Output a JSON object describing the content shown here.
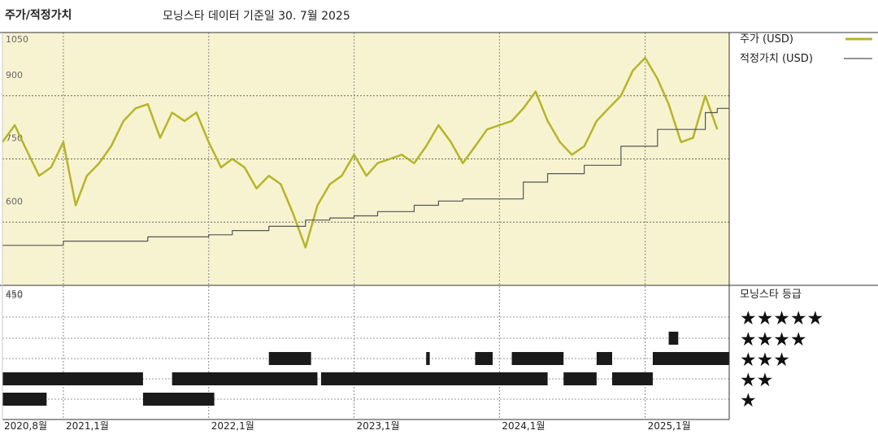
{
  "chart_data": {
    "type": "line",
    "title": "주가/적정가치",
    "subtitle": "모닝스타 데이터 기준일 30. 7월 2025",
    "x_labels": [
      "2020,8월",
      "2021,1월",
      "2022,1월",
      "2023,1월",
      "2024,1월",
      "2025,1월"
    ],
    "y_ticks": [
      1050,
      900,
      750,
      600,
      450
    ],
    "ylim": [
      450,
      1050
    ],
    "legend": [
      {
        "label": "주가 (USD)",
        "color": "#b5b52a"
      },
      {
        "label": "적정가치 (USD)",
        "color": "#555555"
      }
    ],
    "series": [
      {
        "name": "주가 (USD)",
        "color": "#b5b52a",
        "x": [
          "2020-08-01",
          "2020-09-01",
          "2020-10-01",
          "2020-11-01",
          "2020-12-01",
          "2021-01-01",
          "2021-02-01",
          "2021-03-01",
          "2021-04-01",
          "2021-05-01",
          "2021-06-01",
          "2021-07-01",
          "2021-08-01",
          "2021-09-01",
          "2021-10-01",
          "2021-11-01",
          "2021-12-01",
          "2022-01-01",
          "2022-02-01",
          "2022-03-01",
          "2022-04-01",
          "2022-05-01",
          "2022-06-01",
          "2022-07-01",
          "2022-08-01",
          "2022-09-01",
          "2022-10-01",
          "2022-11-01",
          "2022-12-01",
          "2023-01-01",
          "2023-02-01",
          "2023-03-01",
          "2023-04-01",
          "2023-05-01",
          "2023-06-01",
          "2023-07-01",
          "2023-08-01",
          "2023-09-01",
          "2023-10-01",
          "2023-11-01",
          "2023-12-01",
          "2024-01-01",
          "2024-02-01",
          "2024-03-01",
          "2024-04-01",
          "2024-05-01",
          "2024-06-01",
          "2024-07-01",
          "2024-08-01",
          "2024-09-01",
          "2024-10-01",
          "2024-11-01",
          "2024-12-01",
          "2025-01-01",
          "2025-02-01",
          "2025-03-01",
          "2025-04-01",
          "2025-05-01",
          "2025-06-01",
          "2025-07-01"
        ],
        "y": [
          790,
          830,
          770,
          710,
          730,
          790,
          640,
          710,
          740,
          780,
          840,
          870,
          880,
          800,
          860,
          840,
          860,
          790,
          730,
          750,
          730,
          680,
          710,
          690,
          620,
          540,
          640,
          690,
          710,
          760,
          710,
          740,
          750,
          760,
          740,
          780,
          830,
          790,
          740,
          780,
          820,
          830,
          840,
          870,
          910,
          840,
          790,
          760,
          780,
          840,
          870,
          900,
          960,
          990,
          940,
          880,
          790,
          800,
          900,
          820
        ]
      },
      {
        "name": "적정가치 (USD)",
        "color": "#555555",
        "x": [
          "2020-08-01",
          "2020-11-01",
          "2021-01-01",
          "2021-08-01",
          "2022-01-01",
          "2022-03-01",
          "2022-06-01",
          "2022-09-01",
          "2022-11-01",
          "2023-01-01",
          "2023-03-01",
          "2023-06-01",
          "2023-08-01",
          "2023-10-01",
          "2024-01-01",
          "2024-03-01",
          "2024-05-01",
          "2024-08-01",
          "2024-11-01",
          "2025-02-01",
          "2025-06-01",
          "2025-07-01"
        ],
        "y": [
          545,
          545,
          555,
          565,
          570,
          580,
          590,
          605,
          610,
          615,
          625,
          640,
          650,
          655,
          655,
          695,
          715,
          735,
          780,
          820,
          860,
          870
        ]
      }
    ],
    "rating_section": {
      "title": "모닝스타 등급",
      "rows": [
        {
          "label": "★★★★★",
          "stars": 5
        },
        {
          "label": "★★★★",
          "stars": 4
        },
        {
          "label": "★★★",
          "stars": 3
        },
        {
          "label": "★★",
          "stars": 2
        },
        {
          "label": "★",
          "stars": 1
        }
      ],
      "segments": [
        {
          "stars": 2,
          "start": "2020-08-01",
          "end": "2021-07-20"
        },
        {
          "stars": 1,
          "start": "2020-08-01",
          "end": "2020-11-20"
        },
        {
          "stars": 1,
          "start": "2021-07-20",
          "end": "2022-01-15"
        },
        {
          "stars": 2,
          "start": "2021-10-01",
          "end": "2022-10-01"
        },
        {
          "stars": 3,
          "start": "2022-06-01",
          "end": "2022-09-15"
        },
        {
          "stars": 2,
          "start": "2022-10-10",
          "end": "2024-05-01"
        },
        {
          "stars": 3,
          "start": "2023-07-01",
          "end": "2023-07-10"
        },
        {
          "stars": 3,
          "start": "2023-11-01",
          "end": "2023-12-15"
        },
        {
          "stars": 3,
          "start": "2024-02-01",
          "end": "2024-06-10"
        },
        {
          "stars": 2,
          "start": "2024-06-10",
          "end": "2024-09-01"
        },
        {
          "stars": 3,
          "start": "2024-09-01",
          "end": "2024-10-10"
        },
        {
          "stars": 2,
          "start": "2024-10-10",
          "end": "2025-01-20"
        },
        {
          "stars": 3,
          "start": "2025-01-20",
          "end": "2025-07-31"
        },
        {
          "stars": 4,
          "start": "2025-03-01",
          "end": "2025-03-25"
        }
      ]
    }
  }
}
